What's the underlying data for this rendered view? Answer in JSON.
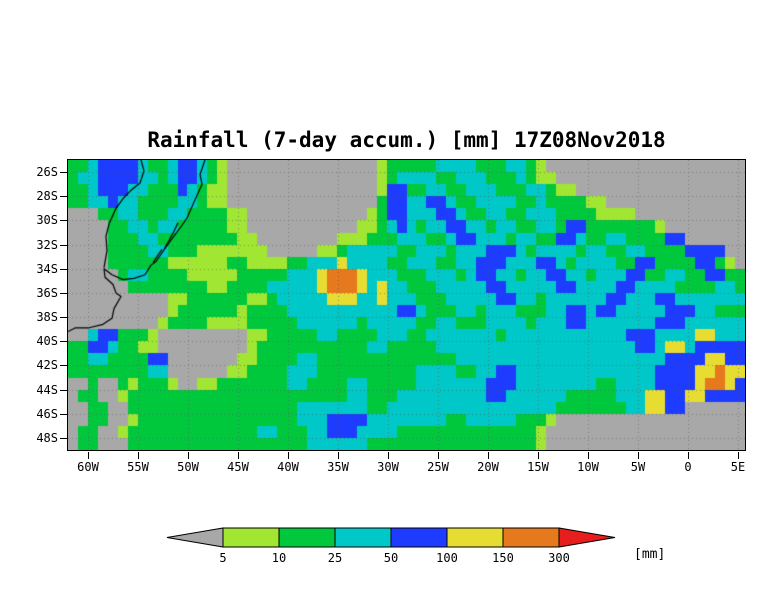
{
  "chart_data": {
    "type": "heatmap",
    "title": "Rainfall (7-day accum.) [mm] 17Z08Nov2018",
    "x_axis": {
      "label_ticks": [
        "60W",
        "55W",
        "50W",
        "45W",
        "40W",
        "35W",
        "30W",
        "25W",
        "20W",
        "15W",
        "10W",
        "5W",
        "0",
        "5E"
      ],
      "values": [
        -60,
        -55,
        -50,
        -45,
        -40,
        -35,
        -30,
        -25,
        -20,
        -15,
        -10,
        -5,
        0,
        5
      ],
      "range": [
        -62,
        5.7
      ]
    },
    "y_axis": {
      "label_ticks": [
        "26S",
        "28S",
        "30S",
        "32S",
        "34S",
        "36S",
        "38S",
        "40S",
        "42S",
        "44S",
        "46S",
        "48S"
      ],
      "values": [
        -26,
        -28,
        -30,
        -32,
        -34,
        -36,
        -38,
        -40,
        -42,
        -44,
        -46,
        -48
      ],
      "range": [
        -49,
        -25
      ]
    },
    "legend": {
      "thresholds_mm": [
        5,
        10,
        25,
        50,
        100,
        150,
        300
      ],
      "unit": "[mm]",
      "colors": [
        "#a8a8a8",
        "#a0e632",
        "#00c83c",
        "#00c8c8",
        "#1e3cff",
        "#e6dc32",
        "#e6781e",
        "#e61e1e"
      ],
      "color_meaning": [
        "below 5",
        "5-10",
        "10-25",
        "25-50",
        "50-100",
        "100-150",
        "150-300",
        "above 300"
      ]
    },
    "grid": {
      "n_cols": 68,
      "n_rows": 24,
      "encoding": "24 rows of 1-degree latitude bands from 25S (top) to 49S (bottom); 68 columns of ~1-degree longitude from 62W (left) to 5.7E (right); each digit is an index into legend.colors",
      "levels": [
        "22344443223443210000000000000001222223333222332100000000000000000000",
        "23344443323443210000000000000001233332233322232110000000000000000000",
        "22344433222432110000000000000001442233223332223321100000000000000000",
        "22334332222332110000000000000002443344322333322322221100000000000000",
        "00022332223322221100000000000012443334432233223332222111100000000000",
        "00002233233222221100000000000112343233443323322332442222222100000000",
        "00002223322222222110000000011122233322344333233224432233222244000000",
        "00002222332221111111000001123333322333233344432333323322332222444400",
        "00002222221111112211112233353333223332233444333443233332244222244210",
        "00000233222211111222223335666533322233323443323344332333442233224422",
        "00000022222222112222333335666535332223333344333334433334433332222332",
        "00000000001122222211233333555335333222333334433233333344333443333333",
        "00000000001222222122223333333333344322233233322233443443333344433222",
        "00000000012222111122222333333233333223322233332333443333333444333333",
        "00344222100000000011222223322223332233333332333333333333444333355333",
        "22443221100000000012222222222233222223333333333333333333344355344444",
        "22332222440000000112222332222222222222233333333333333333333344445544",
        "22222222330000001122223332222222222333322334433333333333333444455655",
        "00200212221001122222223322223322222333333344433333333223333444456654",
        "02200122222222222222222222223322233333333344333333222223335544554444",
        "00220022222222222222222333333322333333333333333332222222335544000000",
        "00220012222222222222222333444433333333223333322210000000000000000000",
        "02200122222222222223322233444333322222222222222100000000000000000000",
        "02200022222222222222222233333322222222222222222100000000000000000000"
      ]
    },
    "coastline": [
      [
        [
          -48.3,
          -25.0
        ],
        [
          -48.8,
          -26.2
        ],
        [
          -48.6,
          -27.0
        ],
        [
          -49.3,
          -28.3
        ],
        [
          -50.1,
          -29.8
        ],
        [
          -50.6,
          -30.4
        ],
        [
          -51.5,
          -31.4
        ],
        [
          -52.2,
          -32.2
        ],
        [
          -53.2,
          -33.4
        ],
        [
          -53.7,
          -33.7
        ],
        [
          -54.3,
          -34.5
        ],
        [
          -55.4,
          -34.8
        ],
        [
          -56.5,
          -34.9
        ],
        [
          -57.6,
          -34.5
        ],
        [
          -58.4,
          -34.0
        ],
        [
          -58.3,
          -34.7
        ],
        [
          -57.5,
          -35.3
        ],
        [
          -57.2,
          -36.0
        ],
        [
          -56.7,
          -36.3
        ],
        [
          -57.4,
          -37.3
        ],
        [
          -57.6,
          -38.1
        ],
        [
          -58.5,
          -38.6
        ],
        [
          -60.0,
          -38.9
        ],
        [
          -61.3,
          -38.9
        ],
        [
          -62.0,
          -39.2
        ]
      ],
      [
        [
          -51.0,
          -30.2
        ],
        [
          -51.4,
          -30.9
        ],
        [
          -52.0,
          -31.8
        ],
        [
          -52.4,
          -32.4
        ]
      ],
      [
        [
          -52.6,
          -32.4
        ],
        [
          -53.1,
          -33.0
        ],
        [
          -53.5,
          -33.5
        ]
      ],
      [
        [
          -58.4,
          -33.9
        ],
        [
          -58.1,
          -32.5
        ],
        [
          -58.2,
          -31.3
        ],
        [
          -57.9,
          -30.3
        ],
        [
          -57.2,
          -29.0
        ],
        [
          -56.5,
          -28.2
        ],
        [
          -55.7,
          -27.5
        ],
        [
          -54.8,
          -26.9
        ],
        [
          -54.4,
          -25.9
        ],
        [
          -54.7,
          -25.0
        ]
      ]
    ]
  }
}
